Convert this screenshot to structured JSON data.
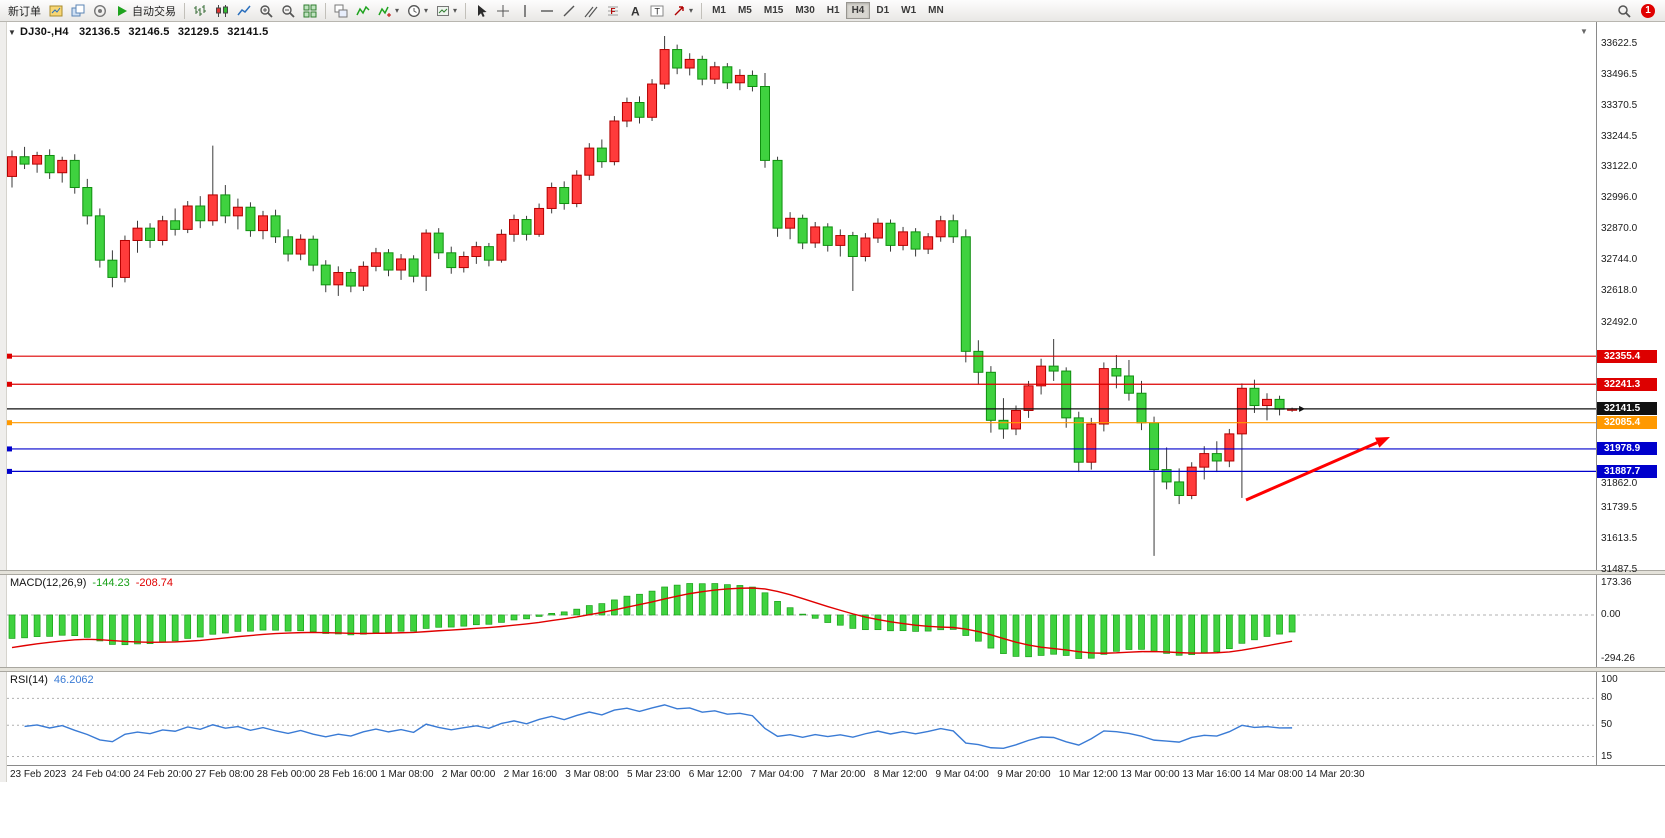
{
  "toolbar": {
    "new_order_label": "新订单",
    "auto_trading_label": "自动交易",
    "groups": [
      {
        "name": "trade",
        "items": [
          {
            "icon": "new-chart"
          },
          {
            "icon": "profiles"
          },
          {
            "icon": "market-watch"
          }
        ]
      },
      {
        "name": "chart-type",
        "items": [
          {
            "icon": "bar-chart"
          },
          {
            "icon": "candlestick-chart"
          },
          {
            "icon": "line-chart"
          },
          {
            "icon": "zoom-in"
          },
          {
            "icon": "zoom-out"
          },
          {
            "icon": "tile-windows"
          }
        ]
      },
      {
        "name": "windows",
        "items": [
          {
            "icon": "cascade"
          },
          {
            "icon": "indicators"
          },
          {
            "icon": "indicators-list",
            "caret": true
          },
          {
            "icon": "periods",
            "caret": true
          },
          {
            "icon": "templates",
            "caret": true
          }
        ]
      },
      {
        "name": "objects",
        "items": [
          {
            "icon": "cursor"
          },
          {
            "icon": "crosshair"
          },
          {
            "icon": "vertical-line"
          },
          {
            "icon": "horizontal-line"
          },
          {
            "icon": "trendline"
          },
          {
            "icon": "channel"
          },
          {
            "icon": "fibonacci"
          },
          {
            "icon": "text"
          },
          {
            "icon": "text-label"
          },
          {
            "icon": "arrows",
            "caret": true
          }
        ]
      }
    ],
    "timeframes": [
      "M1",
      "M5",
      "M15",
      "M30",
      "H1",
      "H4",
      "D1",
      "W1",
      "MN"
    ],
    "active_timeframe": "H4",
    "notification_count": "1"
  },
  "chart_header": {
    "symbol_period": "DJ30-,H4",
    "open": "32136.5",
    "high": "32146.5",
    "low": "32129.5",
    "close": "32141.5"
  },
  "price_axis": {
    "labels": [
      "33622.5",
      "33496.5",
      "33370.5",
      "33244.5",
      "33122.0",
      "32996.0",
      "32870.0",
      "32744.0",
      "32618.0",
      "32492.0",
      "31862.0",
      "31739.5",
      "31613.5",
      "31487.5"
    ],
    "tags": [
      {
        "text": "32355.4",
        "color": "#dd0000",
        "text_color": "#ffffff"
      },
      {
        "text": "32241.3",
        "color": "#dd0000",
        "text_color": "#ffffff"
      },
      {
        "text": "32141.5",
        "color": "#111111",
        "text_color": "#ffffff"
      },
      {
        "text": "32085.4",
        "color": "#ff9900",
        "text_color": "#ffffff"
      },
      {
        "text": "31978.9",
        "color": "#0000cc",
        "text_color": "#ffffff"
      },
      {
        "text": "31887.7",
        "color": "#0000cc",
        "text_color": "#ffffff"
      }
    ]
  },
  "time_axis": {
    "labels": [
      "23 Feb 2023",
      "24 Feb 04:00",
      "24 Feb 20:00",
      "27 Feb 08:00",
      "28 Feb 00:00",
      "28 Feb 16:00",
      "1 Mar 08:00",
      "2 Mar 00:00",
      "2 Mar 16:00",
      "3 Mar 08:00",
      "5 Mar 23:00",
      "6 Mar 12:00",
      "7 Mar 04:00",
      "7 Mar 20:00",
      "8 Mar 12:00",
      "9 Mar 04:00",
      "9 Mar 20:00",
      "10 Mar 12:00",
      "13 Mar 00:00",
      "13 Mar 16:00",
      "14 Mar 08:00",
      "14 Mar 20:30"
    ]
  },
  "macd_panel": {
    "title": "MACD(12,26,9)",
    "value_main": "-144.23",
    "value_signal": "-208.74",
    "axis_labels": [
      "173.36",
      "0.00",
      "-294.26"
    ]
  },
  "rsi_panel": {
    "title": "RSI(14)",
    "value": "46.2062",
    "axis_labels": [
      "100",
      "80",
      "50",
      "15"
    ],
    "levels": [
      80,
      50,
      15
    ]
  },
  "colors": {
    "up_body": "#ff3b3b",
    "up_border": "#b40000",
    "down_body": "#3fd23f",
    "down_border": "#0f8f0f",
    "wick": "#3a3a3a",
    "macd_hist": "#3fd23f",
    "macd_hist_border": "#18a018",
    "macd_signal": "#e00000",
    "rsi_line": "#3a7bd5",
    "annotation_arrow": "#ff0000"
  },
  "chart_data": {
    "type": "candlestick",
    "symbol": "DJ30-",
    "timeframe": "H4",
    "ylim": [
      31487.5,
      33622.5
    ],
    "legend_note": "red = bullish, green = bearish (CN convention)",
    "horizontal_lines": [
      {
        "price": 32355.4,
        "color": "#dd0000",
        "role": "resistance"
      },
      {
        "price": 32241.3,
        "color": "#dd0000",
        "role": "resistance"
      },
      {
        "price": 32141.5,
        "color": "#111111",
        "role": "current-price"
      },
      {
        "price": 32085.4,
        "color": "#ff9900",
        "role": "pivot"
      },
      {
        "price": 31978.9,
        "color": "#0000cc",
        "role": "support"
      },
      {
        "price": 31887.7,
        "color": "#0000cc",
        "role": "support"
      }
    ],
    "candles_ohlc": [
      [
        33085,
        33190,
        33040,
        33165
      ],
      [
        33165,
        33205,
        33115,
        33135
      ],
      [
        33135,
        33185,
        33100,
        33170
      ],
      [
        33170,
        33195,
        33075,
        33100
      ],
      [
        33100,
        33165,
        33060,
        33150
      ],
      [
        33150,
        33175,
        33015,
        33040
      ],
      [
        33040,
        33075,
        32890,
        32925
      ],
      [
        32925,
        32955,
        32715,
        32745
      ],
      [
        32745,
        32785,
        32635,
        32675
      ],
      [
        32675,
        32845,
        32655,
        32825
      ],
      [
        32825,
        32905,
        32775,
        32875
      ],
      [
        32875,
        32895,
        32795,
        32825
      ],
      [
        32825,
        32925,
        32805,
        32905
      ],
      [
        32905,
        32955,
        32845,
        32870
      ],
      [
        32870,
        32985,
        32855,
        32965
      ],
      [
        32965,
        33005,
        32875,
        32905
      ],
      [
        32905,
        33210,
        32885,
        33010
      ],
      [
        33010,
        33050,
        32895,
        32925
      ],
      [
        32925,
        32995,
        32870,
        32960
      ],
      [
        32960,
        32980,
        32840,
        32865
      ],
      [
        32865,
        32945,
        32830,
        32925
      ],
      [
        32925,
        32950,
        32815,
        32840
      ],
      [
        32840,
        32870,
        32740,
        32770
      ],
      [
        32770,
        32850,
        32745,
        32830
      ],
      [
        32830,
        32845,
        32700,
        32725
      ],
      [
        32725,
        32745,
        32615,
        32645
      ],
      [
        32645,
        32720,
        32600,
        32695
      ],
      [
        32695,
        32710,
        32615,
        32640
      ],
      [
        32640,
        32740,
        32620,
        32720
      ],
      [
        32720,
        32795,
        32700,
        32775
      ],
      [
        32775,
        32790,
        32680,
        32705
      ],
      [
        32705,
        32770,
        32665,
        32750
      ],
      [
        32750,
        32765,
        32655,
        32680
      ],
      [
        32680,
        32870,
        32620,
        32855
      ],
      [
        32855,
        32875,
        32750,
        32775
      ],
      [
        32775,
        32800,
        32690,
        32715
      ],
      [
        32715,
        32780,
        32695,
        32760
      ],
      [
        32760,
        32820,
        32730,
        32800
      ],
      [
        32800,
        32815,
        32720,
        32745
      ],
      [
        32745,
        32870,
        32735,
        32850
      ],
      [
        32850,
        32930,
        32820,
        32910
      ],
      [
        32910,
        32925,
        32825,
        32850
      ],
      [
        32850,
        32975,
        32840,
        32955
      ],
      [
        32955,
        33060,
        32935,
        33040
      ],
      [
        33040,
        33065,
        32950,
        32975
      ],
      [
        32975,
        33110,
        32960,
        33090
      ],
      [
        33090,
        33220,
        33070,
        33200
      ],
      [
        33200,
        33235,
        33120,
        33145
      ],
      [
        33145,
        33330,
        33130,
        33310
      ],
      [
        33310,
        33405,
        33285,
        33385
      ],
      [
        33385,
        33410,
        33300,
        33325
      ],
      [
        33325,
        33480,
        33310,
        33460
      ],
      [
        33460,
        33655,
        33440,
        33600
      ],
      [
        33600,
        33620,
        33500,
        33525
      ],
      [
        33525,
        33585,
        33495,
        33560
      ],
      [
        33560,
        33575,
        33455,
        33480
      ],
      [
        33480,
        33550,
        33460,
        33530
      ],
      [
        33530,
        33545,
        33440,
        33465
      ],
      [
        33465,
        33520,
        33435,
        33495
      ],
      [
        33495,
        33515,
        33430,
        33450
      ],
      [
        33450,
        33505,
        33120,
        33150
      ],
      [
        33150,
        33165,
        32840,
        32875
      ],
      [
        32875,
        32940,
        32830,
        32915
      ],
      [
        32915,
        32930,
        32790,
        32815
      ],
      [
        32815,
        32900,
        32795,
        32880
      ],
      [
        32880,
        32895,
        32780,
        32805
      ],
      [
        32805,
        32870,
        32760,
        32845
      ],
      [
        32845,
        32860,
        32620,
        32760
      ],
      [
        32760,
        32855,
        32740,
        32835
      ],
      [
        32835,
        32915,
        32815,
        32895
      ],
      [
        32895,
        32910,
        32780,
        32805
      ],
      [
        32805,
        32880,
        32785,
        32860
      ],
      [
        32860,
        32875,
        32760,
        32790
      ],
      [
        32790,
        32855,
        32770,
        32840
      ],
      [
        32840,
        32925,
        32820,
        32905
      ],
      [
        32905,
        32930,
        32815,
        32840
      ],
      [
        32840,
        32870,
        32330,
        32375
      ],
      [
        32375,
        32420,
        32240,
        32290
      ],
      [
        32290,
        32315,
        32045,
        32095
      ],
      [
        32095,
        32185,
        32020,
        32060
      ],
      [
        32060,
        32155,
        32035,
        32135
      ],
      [
        32135,
        32255,
        32105,
        32235
      ],
      [
        32235,
        32345,
        32200,
        32315
      ],
      [
        32315,
        32425,
        32255,
        32295
      ],
      [
        32295,
        32310,
        32065,
        32105
      ],
      [
        32105,
        32130,
        31885,
        31925
      ],
      [
        31925,
        32105,
        31895,
        32080
      ],
      [
        32080,
        32330,
        32050,
        32305
      ],
      [
        32305,
        32360,
        32225,
        32275
      ],
      [
        32275,
        32340,
        32175,
        32205
      ],
      [
        32205,
        32255,
        32055,
        32085
      ],
      [
        32085,
        32110,
        31545,
        31895
      ],
      [
        31895,
        31985,
        31815,
        31845
      ],
      [
        31845,
        31900,
        31755,
        31790
      ],
      [
        31790,
        31925,
        31775,
        31905
      ],
      [
        31905,
        31990,
        31855,
        31960
      ],
      [
        31960,
        32010,
        31885,
        31930
      ],
      [
        31930,
        32060,
        31905,
        32040
      ],
      [
        32040,
        32245,
        31780,
        32225
      ],
      [
        32225,
        32260,
        32125,
        32155
      ],
      [
        32155,
        32205,
        32095,
        32180
      ],
      [
        32180,
        32195,
        32115,
        32140
      ],
      [
        32136.5,
        32146.5,
        32129.5,
        32141.5
      ]
    ],
    "indicators": [
      {
        "type": "MACD",
        "params": [
          12,
          26,
          9
        ],
        "last_main": -144.23,
        "last_signal": -208.74
      },
      {
        "type": "RSI",
        "params": [
          14
        ],
        "last": 46.2062
      }
    ],
    "annotations": [
      {
        "type": "arrow",
        "direction": "up-right",
        "color": "#ff0000"
      }
    ]
  }
}
